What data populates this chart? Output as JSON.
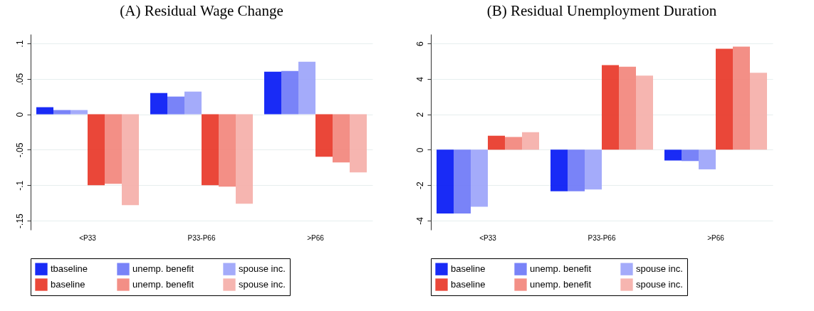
{
  "chart_data": [
    {
      "type": "bar",
      "title": "(A) Residual Wage Change",
      "categories": [
        "<P33",
        "P33-P66",
        ">P66"
      ],
      "ylim": [
        -0.163,
        0.113
      ],
      "yticks": [
        {
          "value": -0.15,
          "label": "-.15"
        },
        {
          "value": -0.1,
          "label": "-.1"
        },
        {
          "value": -0.05,
          "label": "-.05"
        },
        0,
        {
          "value": 0.05,
          "label": ".05"
        },
        {
          "value": 0.1,
          "label": ".1"
        }
      ],
      "grid": "y",
      "legend": "bottom",
      "series": [
        {
          "name": "tbaseline",
          "color": "#0014f5",
          "values": [
            0.01,
            0.03,
            0.06
          ]
        },
        {
          "name": "unemp. benefit",
          "color": "#6a76f7",
          "values": [
            0.006,
            0.025,
            0.061
          ]
        },
        {
          "name": "spouse inc.",
          "color": "#9aa2f9",
          "values": [
            0.006,
            0.032,
            0.074
          ]
        },
        {
          "name": "baseline",
          "color": "#e83323",
          "values": [
            -0.1,
            -0.1,
            -0.06
          ]
        },
        {
          "name": "unemp. benefit",
          "color": "#f28379",
          "values": [
            -0.098,
            -0.102,
            -0.068
          ]
        },
        {
          "name": "spouse inc.",
          "color": "#f5ada7",
          "values": [
            -0.128,
            -0.126,
            -0.082
          ]
        }
      ]
    },
    {
      "type": "bar",
      "title": "(B) Residual Unemployment Duration",
      "categories": [
        "<P33",
        "P33-P66",
        ">P66"
      ],
      "ylim": [
        -4.53,
        6.53
      ],
      "yticks": [
        -4,
        -2,
        0,
        2,
        4,
        6
      ],
      "grid": "y",
      "legend": "bottom",
      "series": [
        {
          "name": "baseline",
          "color": "#0014f5",
          "values": [
            -3.6,
            -2.35,
            -0.61
          ]
        },
        {
          "name": "unemp. benefit",
          "color": "#6a76f7",
          "values": [
            -3.61,
            -2.35,
            -0.64
          ]
        },
        {
          "name": "spouse inc.",
          "color": "#9aa2f9",
          "values": [
            -3.22,
            -2.25,
            -1.11
          ]
        },
        {
          "name": "baseline",
          "color": "#e83323",
          "values": [
            0.79,
            4.78,
            5.71
          ]
        },
        {
          "name": "unemp. benefit",
          "color": "#f28379",
          "values": [
            0.72,
            4.69,
            5.83
          ]
        },
        {
          "name": "spouse inc.",
          "color": "#f5ada7",
          "values": [
            0.99,
            4.19,
            4.35
          ]
        }
      ]
    }
  ]
}
